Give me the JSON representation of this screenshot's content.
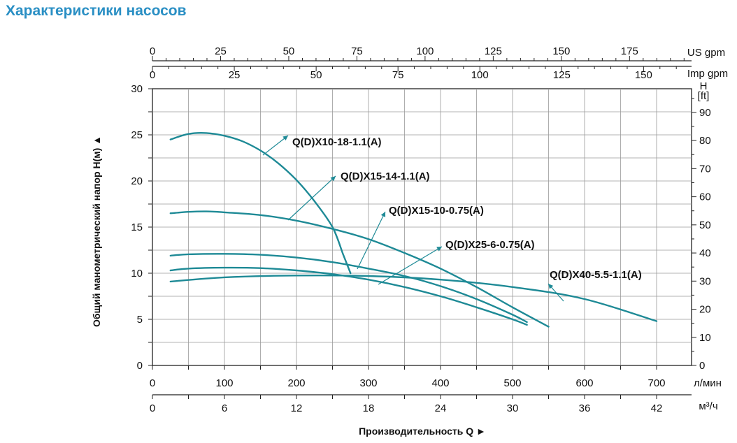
{
  "page": {
    "title": "Характеристики насосов"
  },
  "chart_data": {
    "type": "line",
    "title": "",
    "xlabel": "Производительность Q",
    "ylabel": "Общий манометрический напор H(м)",
    "xlim": [
      0,
      750
    ],
    "ylim": [
      0,
      30
    ],
    "grid": true,
    "x_units": {
      "primary": {
        "unit": "л/мин",
        "ticks": [
          0,
          100,
          200,
          300,
          400,
          500,
          600,
          700
        ]
      },
      "m3h": {
        "unit": "м³/ч",
        "ticks": [
          0,
          6,
          12,
          18,
          24,
          30,
          36,
          42
        ]
      },
      "us_gpm": {
        "unit": "US gpm",
        "ticks": [
          0,
          25,
          50,
          75,
          100,
          125,
          150,
          175
        ]
      },
      "imp_gpm": {
        "unit": "Imp gpm",
        "ticks": [
          0,
          25,
          50,
          75,
          100,
          125,
          150
        ]
      }
    },
    "y_left": {
      "unit": "",
      "ticks": [
        0,
        5,
        10,
        15,
        20,
        25,
        30
      ]
    },
    "y_right": {
      "unit_top": "H",
      "unit_bottom": "[ft]",
      "ticks": [
        0,
        10,
        20,
        30,
        40,
        50,
        60,
        70,
        80,
        90
      ]
    },
    "series": [
      {
        "name": "Q(D)X10-18-1.1(A)",
        "color": "#1e8a96",
        "points": [
          [
            25,
            24.5
          ],
          [
            50,
            25.1
          ],
          [
            75,
            25.2
          ],
          [
            100,
            24.9
          ],
          [
            125,
            24.3
          ],
          [
            150,
            23.3
          ],
          [
            175,
            21.9
          ],
          [
            200,
            20.1
          ],
          [
            225,
            17.8
          ],
          [
            250,
            15.0
          ],
          [
            265,
            12.0
          ],
          [
            275,
            10.0
          ]
        ]
      },
      {
        "name": "Q(D)X15-14-1.1(A)",
        "color": "#1e8a96",
        "points": [
          [
            25,
            16.5
          ],
          [
            50,
            16.65
          ],
          [
            75,
            16.7
          ],
          [
            100,
            16.6
          ],
          [
            150,
            16.3
          ],
          [
            200,
            15.7
          ],
          [
            250,
            14.8
          ],
          [
            300,
            13.7
          ],
          [
            350,
            12.2
          ],
          [
            400,
            10.5
          ],
          [
            450,
            8.5
          ],
          [
            500,
            6.3
          ],
          [
            550,
            4.2
          ]
        ]
      },
      {
        "name": "Q(D)X15-10-0.75(A)",
        "color": "#1e8a96",
        "points": [
          [
            25,
            11.9
          ],
          [
            50,
            12.05
          ],
          [
            100,
            12.1
          ],
          [
            150,
            12.0
          ],
          [
            200,
            11.7
          ],
          [
            250,
            11.2
          ],
          [
            300,
            10.5
          ],
          [
            350,
            9.7
          ],
          [
            400,
            8.6
          ],
          [
            450,
            7.2
          ],
          [
            500,
            5.5
          ],
          [
            520,
            4.7
          ]
        ]
      },
      {
        "name": "Q(D)X25-6-0.75(A)",
        "color": "#1e8a96",
        "points": [
          [
            25,
            10.3
          ],
          [
            50,
            10.5
          ],
          [
            100,
            10.6
          ],
          [
            150,
            10.55
          ],
          [
            200,
            10.3
          ],
          [
            250,
            9.9
          ],
          [
            300,
            9.3
          ],
          [
            350,
            8.5
          ],
          [
            400,
            7.5
          ],
          [
            450,
            6.3
          ],
          [
            500,
            5.0
          ],
          [
            520,
            4.4
          ]
        ]
      },
      {
        "name": "Q(D)X40-5.5-1.1(A)",
        "color": "#1e8a96",
        "points": [
          [
            25,
            9.1
          ],
          [
            100,
            9.55
          ],
          [
            200,
            9.75
          ],
          [
            300,
            9.7
          ],
          [
            400,
            9.3
          ],
          [
            500,
            8.5
          ],
          [
            600,
            7.2
          ],
          [
            700,
            4.8
          ]
        ]
      }
    ],
    "labels": [
      {
        "series": 0,
        "text": "Q(D)X10-18-1.1(A)"
      },
      {
        "series": 1,
        "text": "Q(D)X15-14-1.1(A)"
      },
      {
        "series": 2,
        "text": "Q(D)X15-10-0.75(A)"
      },
      {
        "series": 3,
        "text": "Q(D)X25-6-0.75(A)"
      },
      {
        "series": 4,
        "text": "Q(D)X40-5.5-1.1(A)"
      }
    ]
  }
}
